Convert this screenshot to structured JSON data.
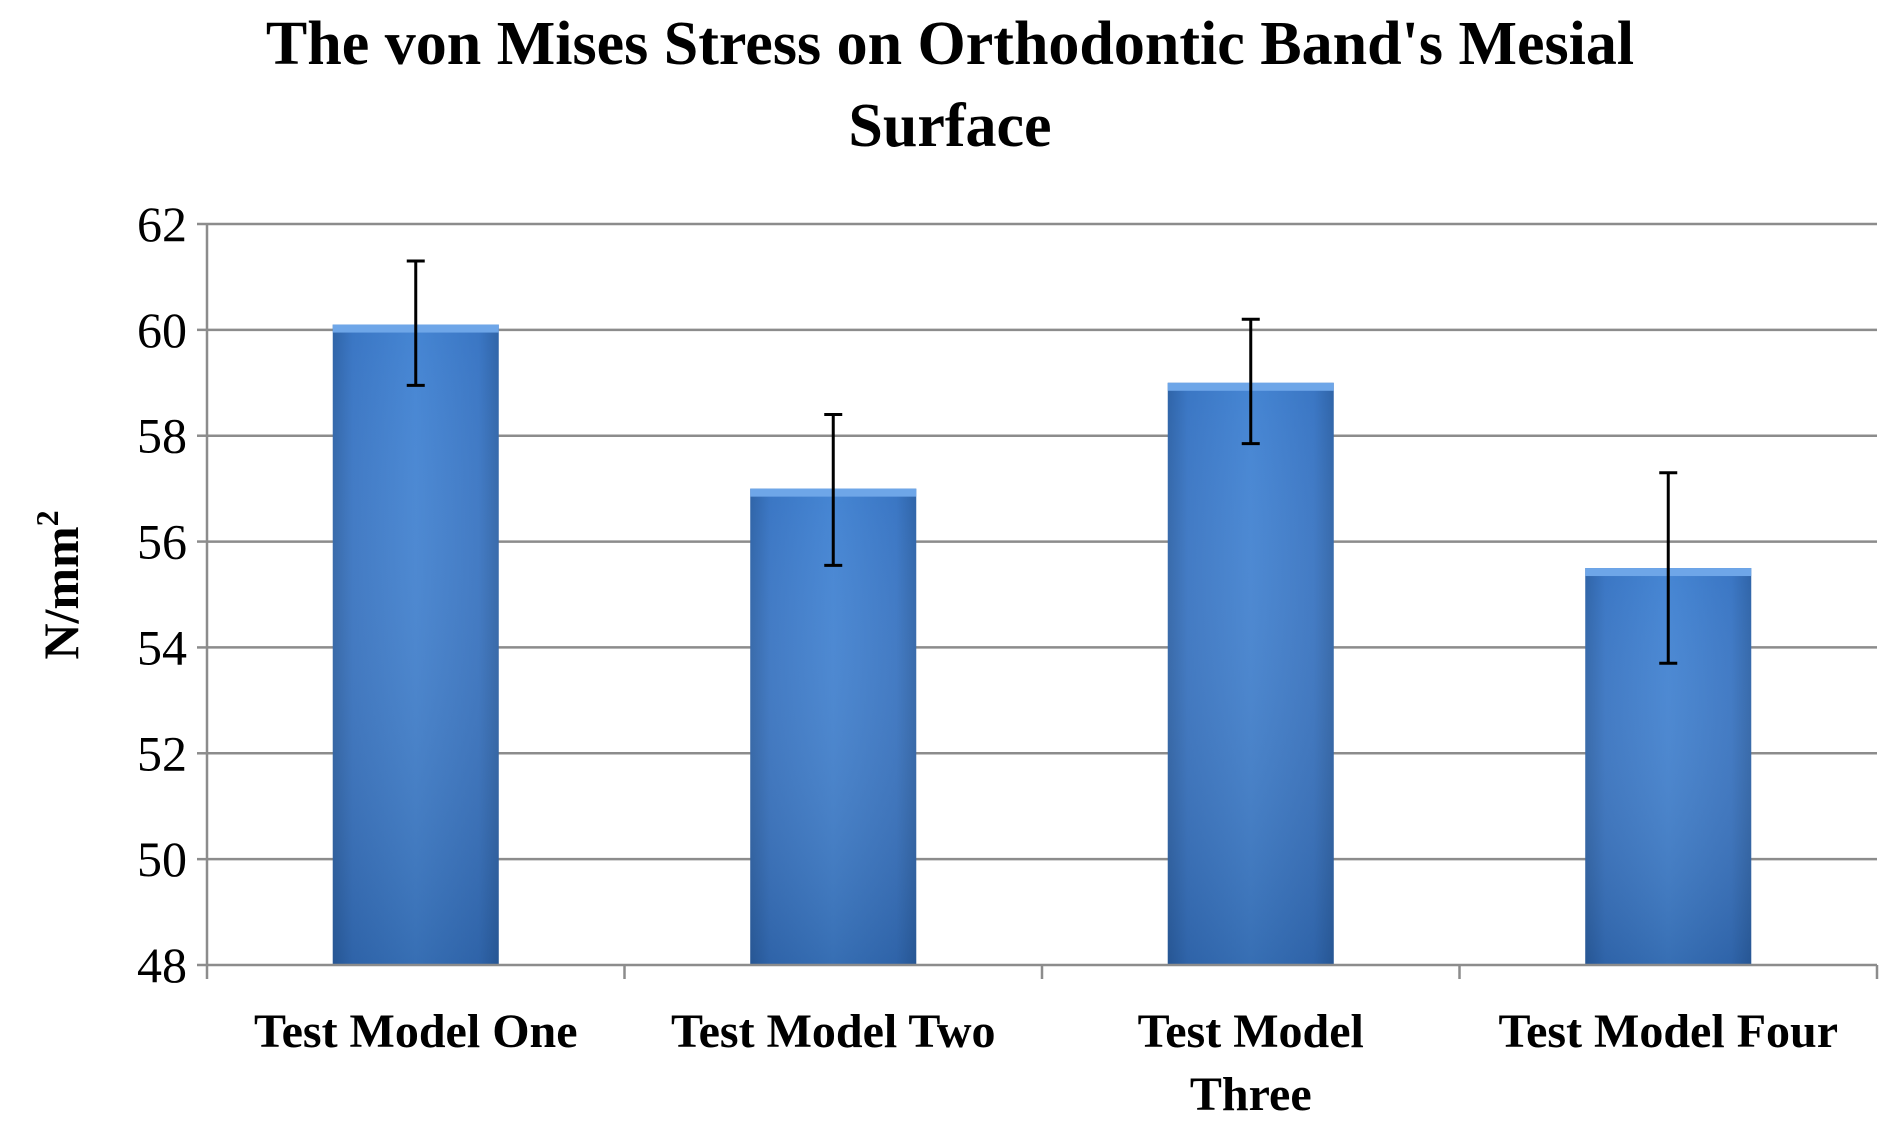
{
  "chart_data": {
    "type": "bar",
    "title_lines": [
      "The von Mises Stress on Orthodontic Band's Mesial",
      "Surface"
    ],
    "ylabel": "N/mm",
    "ylabel_superscript": "2",
    "ylim": [
      48,
      62
    ],
    "yticks": [
      "48",
      "50",
      "52",
      "54",
      "56",
      "58",
      "60",
      "62"
    ],
    "ytick_values": [
      48,
      50,
      52,
      54,
      56,
      58,
      60,
      62
    ],
    "categories": [
      [
        "Test Model One"
      ],
      [
        "Test Model Two"
      ],
      [
        "Test Model",
        "Three"
      ],
      [
        "Test Model Four"
      ]
    ],
    "values": [
      60.1,
      57.0,
      59.0,
      55.5
    ],
    "error_low": [
      58.95,
      55.55,
      57.85,
      53.7
    ],
    "error_high": [
      61.3,
      58.4,
      60.2,
      57.3
    ],
    "grid": true,
    "legend": "none",
    "bar_color": "#3f7ccc"
  }
}
